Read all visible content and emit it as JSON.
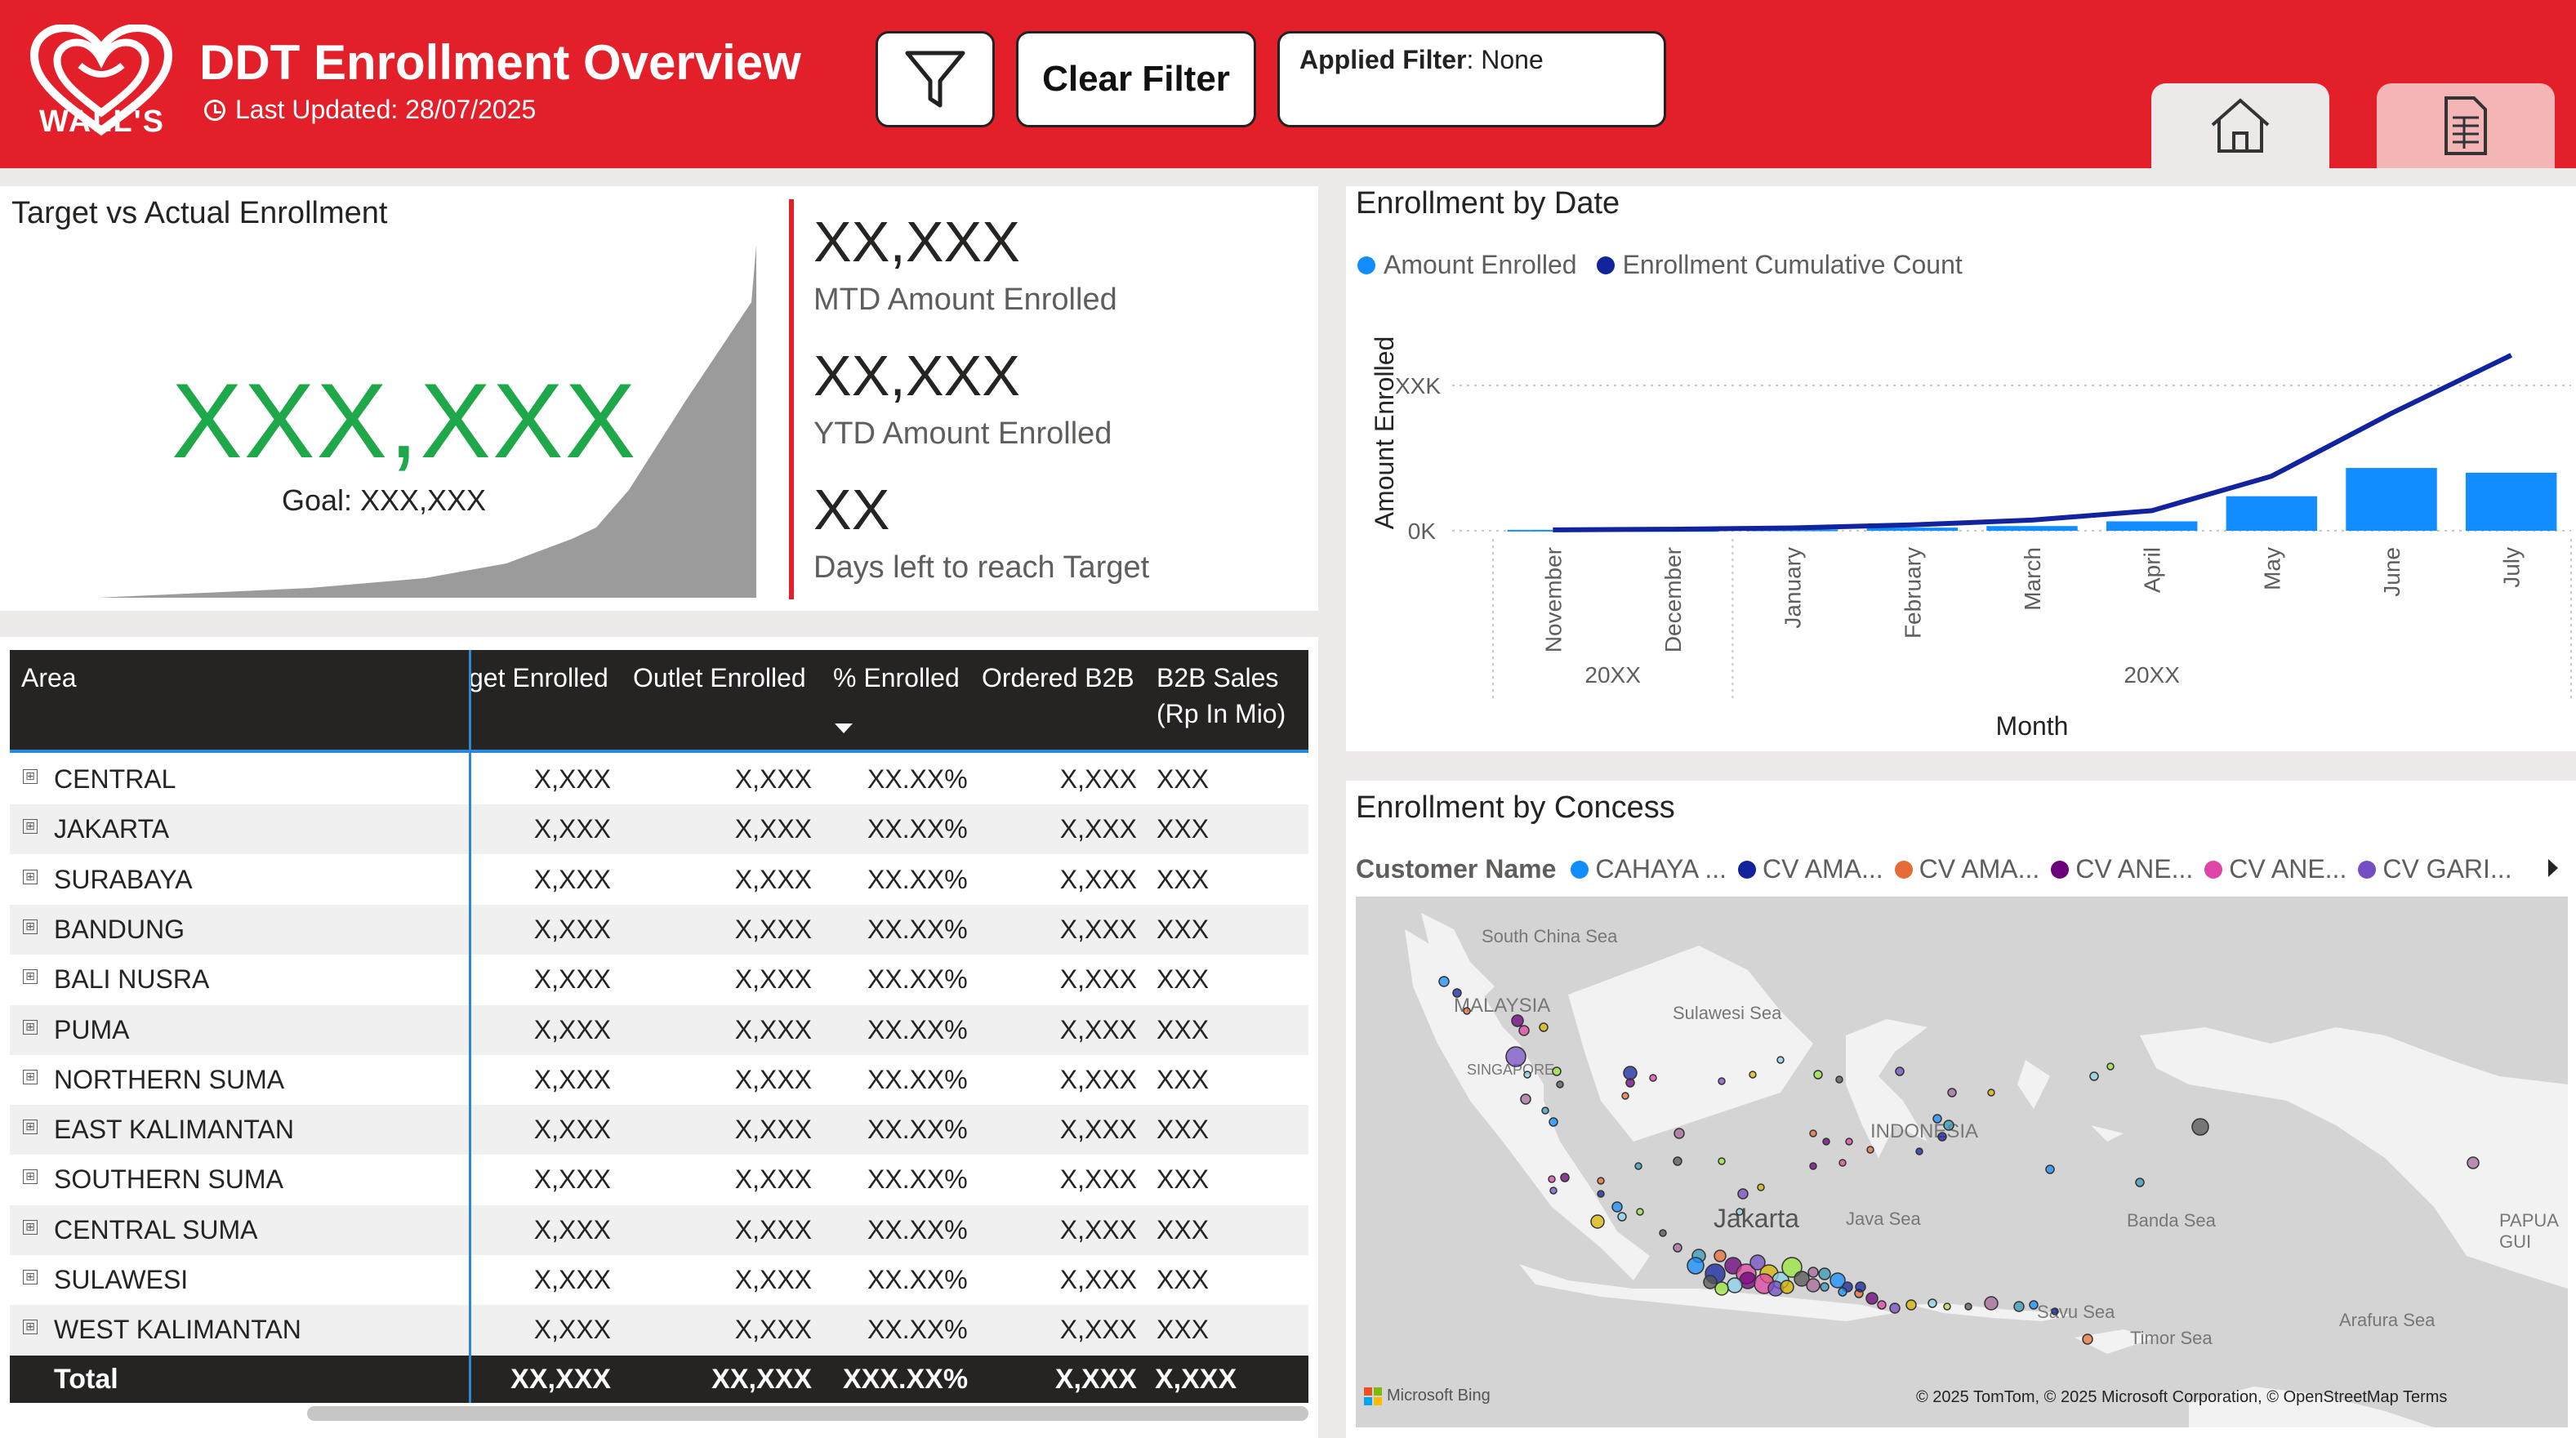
{
  "header": {
    "logo_text": "WALL'S",
    "title": "DDT Enrollment Overview",
    "last_updated": "Last Updated: 28/07/2025",
    "clear_filter_label": "Clear Filter",
    "applied_filter_label": "Applied Filter",
    "applied_filter_value": ": None"
  },
  "target": {
    "title": "Target vs Actual Enrollment",
    "actual_value": "XXX,XXX",
    "goal": "Goal: XXX,XXX",
    "mtd_value": "XX,XXX",
    "mtd_label": "MTD Amount Enrolled",
    "ytd_value": "XX,XXX",
    "ytd_label": "YTD Amount Enrolled",
    "days_value": "XX",
    "days_label": "Days left to reach Target"
  },
  "table": {
    "columns": [
      "Area",
      "get Enrolled",
      "Outlet Enrolled",
      "% Enrolled",
      "Ordered B2B",
      "B2B Sales",
      "(Rp In Mio)"
    ],
    "rows": [
      {
        "area": "CENTRAL",
        "target": "X,XXX",
        "outlet": "X,XXX",
        "pct": "XX.XX%",
        "ordered": "X,XXX",
        "sales": "XXX"
      },
      {
        "area": "JAKARTA",
        "target": "X,XXX",
        "outlet": "X,XXX",
        "pct": "XX.XX%",
        "ordered": "X,XXX",
        "sales": "XXX"
      },
      {
        "area": "SURABAYA",
        "target": "X,XXX",
        "outlet": "X,XXX",
        "pct": "XX.XX%",
        "ordered": "X,XXX",
        "sales": "XXX"
      },
      {
        "area": "BANDUNG",
        "target": "X,XXX",
        "outlet": "X,XXX",
        "pct": "XX.XX%",
        "ordered": "X,XXX",
        "sales": "XXX"
      },
      {
        "area": "BALI NUSRA",
        "target": "X,XXX",
        "outlet": "X,XXX",
        "pct": "XX.XX%",
        "ordered": "X,XXX",
        "sales": "XXX"
      },
      {
        "area": "PUMA",
        "target": "X,XXX",
        "outlet": "X,XXX",
        "pct": "XX.XX%",
        "ordered": "X,XXX",
        "sales": "XXX"
      },
      {
        "area": "NORTHERN SUMA",
        "target": "X,XXX",
        "outlet": "X,XXX",
        "pct": "XX.XX%",
        "ordered": "X,XXX",
        "sales": "XXX"
      },
      {
        "area": "EAST KALIMANTAN",
        "target": "X,XXX",
        "outlet": "X,XXX",
        "pct": "XX.XX%",
        "ordered": "X,XXX",
        "sales": "XXX"
      },
      {
        "area": "SOUTHERN SUMA",
        "target": "X,XXX",
        "outlet": "X,XXX",
        "pct": "XX.XX%",
        "ordered": "X,XXX",
        "sales": "XXX"
      },
      {
        "area": "CENTRAL SUMA",
        "target": "X,XXX",
        "outlet": "X,XXX",
        "pct": "XX.XX%",
        "ordered": "X,XXX",
        "sales": "XXX"
      },
      {
        "area": "SULAWESI",
        "target": "X,XXX",
        "outlet": "X,XXX",
        "pct": "XX.XX%",
        "ordered": "X,XXX",
        "sales": "XXX"
      },
      {
        "area": "WEST KALIMANTAN",
        "target": "X,XXX",
        "outlet": "X,XXX",
        "pct": "XX.XX%",
        "ordered": "X,XXX",
        "sales": "XXX"
      }
    ],
    "total": {
      "label": "Total",
      "target": "XX,XXX",
      "outlet": "XX,XXX",
      "pct": "XXX.XX%",
      "ordered": "X,XXX",
      "sales": "X,XXX"
    }
  },
  "chart_data": {
    "type": "bar",
    "title": "Enrollment by Date",
    "categories": [
      "November",
      "December",
      "January",
      "February",
      "March",
      "April",
      "May",
      "June",
      "July"
    ],
    "year_groups": [
      {
        "label": "20XX",
        "months": 2
      },
      {
        "label": "20XX",
        "months": 7
      }
    ],
    "series": [
      {
        "name": "Amount Enrolled",
        "type": "bar",
        "color": "#118dff",
        "values": [
          0.3,
          0.2,
          0.4,
          1.0,
          1.5,
          3.0,
          11.0,
          20.0,
          18.5
        ]
      },
      {
        "name": "Enrollment Cumulative Count",
        "type": "line",
        "color": "#12239e",
        "values": [
          0.3,
          0.5,
          0.9,
          1.9,
          3.4,
          6.4,
          17.4,
          37.4,
          55.9
        ]
      }
    ],
    "xlabel": "Month",
    "ylabel": "Amount Enrolled",
    "y_ticks": [
      "0K",
      "XXK"
    ],
    "ylim": [
      0,
      65
    ]
  },
  "concess": {
    "title": "Enrollment by Concess",
    "legend_title": "Customer Name",
    "legend": [
      {
        "name": "CAHAYA ...",
        "color": "#118dff"
      },
      {
        "name": "CV AMA...",
        "color": "#12239e"
      },
      {
        "name": "CV AMA...",
        "color": "#e66c37"
      },
      {
        "name": "CV ANE...",
        "color": "#6b007b"
      },
      {
        "name": "CV ANE...",
        "color": "#e044a7"
      },
      {
        "name": "CV GARI...",
        "color": "#744ec2"
      }
    ],
    "map_labels": [
      "South China Sea",
      "MALAYSIA",
      "SINGAPORE",
      "Sulawesi Sea",
      "INDONESIA",
      "Jakarta",
      "Java Sea",
      "Banda Sea",
      "PAPUA GUI",
      "Savu Sea",
      "Timor Sea",
      "Arafura Sea"
    ],
    "bing": "Microsoft Bing",
    "copyright": "© 2025 TomTom, © 2025 Microsoft Corporation, © OpenStreetMap  Terms"
  }
}
